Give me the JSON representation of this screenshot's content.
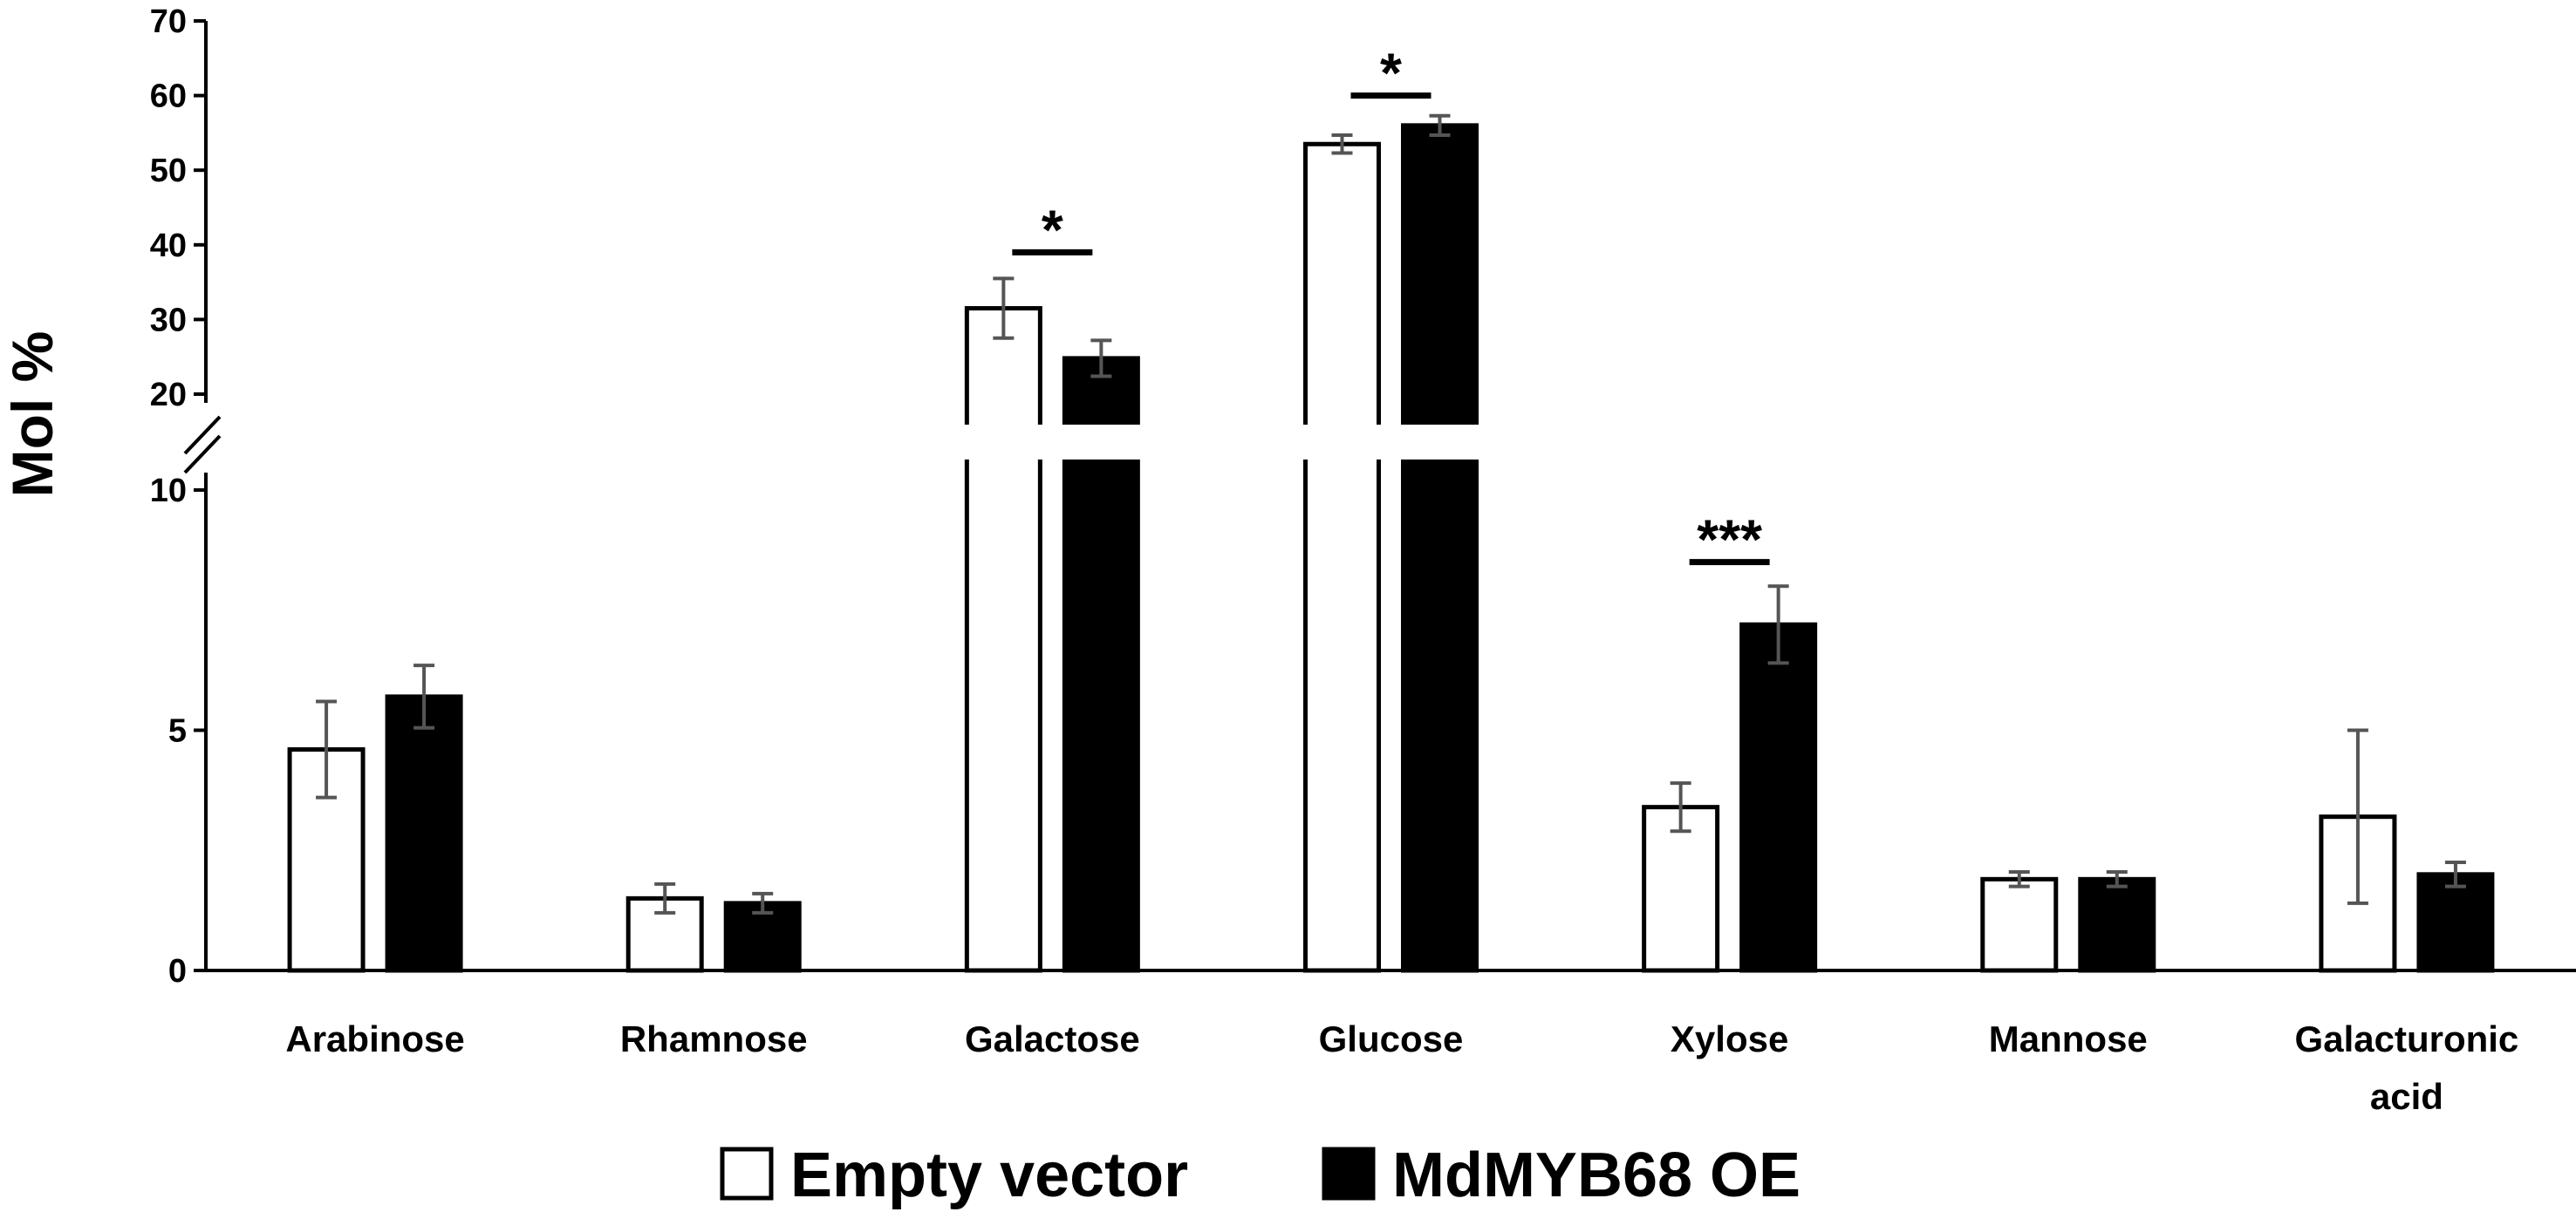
{
  "chart_data": {
    "type": "bar",
    "ylabel": "Mol %",
    "xlabel": "",
    "title": "",
    "broken_axis": true,
    "ylim_lower": [
      0,
      10
    ],
    "ylim_upper": [
      20,
      70
    ],
    "yticks_lower": [
      "0",
      "5",
      "10"
    ],
    "yticks_upper": [
      "20",
      "30",
      "40",
      "50",
      "60",
      "70"
    ],
    "categories": [
      [
        "Arabinose"
      ],
      [
        "Rhamnose"
      ],
      [
        "Galactose"
      ],
      [
        "Glucose"
      ],
      [
        "Xylose"
      ],
      [
        "Mannose"
      ],
      [
        "Galacturonic",
        "acid"
      ]
    ],
    "series": [
      {
        "name": "Empty vector",
        "color": "#ffffff",
        "values": [
          4.6,
          1.5,
          31.5,
          53.5,
          3.4,
          1.9,
          3.2
        ],
        "errors": [
          1.0,
          0.3,
          4.0,
          1.2,
          0.5,
          0.15,
          1.8
        ]
      },
      {
        "name": "MdMYB68 OE",
        "color": "#000000",
        "values": [
          5.7,
          1.4,
          24.8,
          56.0,
          7.2,
          1.9,
          2.0
        ],
        "errors": [
          0.65,
          0.2,
          2.4,
          1.3,
          0.8,
          0.15,
          0.25
        ]
      }
    ],
    "significance": [
      {
        "category_index": 2,
        "label": "*",
        "level": 39
      },
      {
        "category_index": 3,
        "label": "*",
        "level": 60
      },
      {
        "category_index": 4,
        "label": "***",
        "level": 8.5
      }
    ],
    "legend_position": "bottom"
  }
}
